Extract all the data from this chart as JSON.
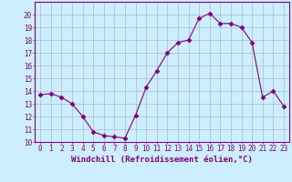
{
  "x": [
    0,
    1,
    2,
    3,
    4,
    5,
    6,
    7,
    8,
    9,
    10,
    11,
    12,
    13,
    14,
    15,
    16,
    17,
    18,
    19,
    20,
    21,
    22,
    23
  ],
  "y": [
    13.7,
    13.8,
    13.5,
    13.0,
    12.0,
    10.8,
    10.5,
    10.4,
    10.3,
    12.1,
    14.3,
    15.6,
    17.0,
    17.8,
    18.0,
    19.7,
    20.1,
    19.3,
    19.3,
    19.0,
    17.8,
    13.5,
    14.0,
    12.8
  ],
  "line_color": "#800080",
  "marker": "D",
  "markersize": 2.5,
  "linewidth": 0.8,
  "xlabel": "Windchill (Refroidissement éolien,°C)",
  "xlabel_fontsize": 6.5,
  "xlim": [
    -0.5,
    23.5
  ],
  "ylim": [
    10,
    21
  ],
  "yticks": [
    10,
    11,
    12,
    13,
    14,
    15,
    16,
    17,
    18,
    19,
    20
  ],
  "xticks": [
    0,
    1,
    2,
    3,
    4,
    5,
    6,
    7,
    8,
    9,
    10,
    11,
    12,
    13,
    14,
    15,
    16,
    17,
    18,
    19,
    20,
    21,
    22,
    23
  ],
  "tick_fontsize": 5.5,
  "bg_color": "#cceeff",
  "grid_color": "#aabbcc",
  "axes_color": "#800080",
  "tick_color": "#800080",
  "label_color": "#800080"
}
